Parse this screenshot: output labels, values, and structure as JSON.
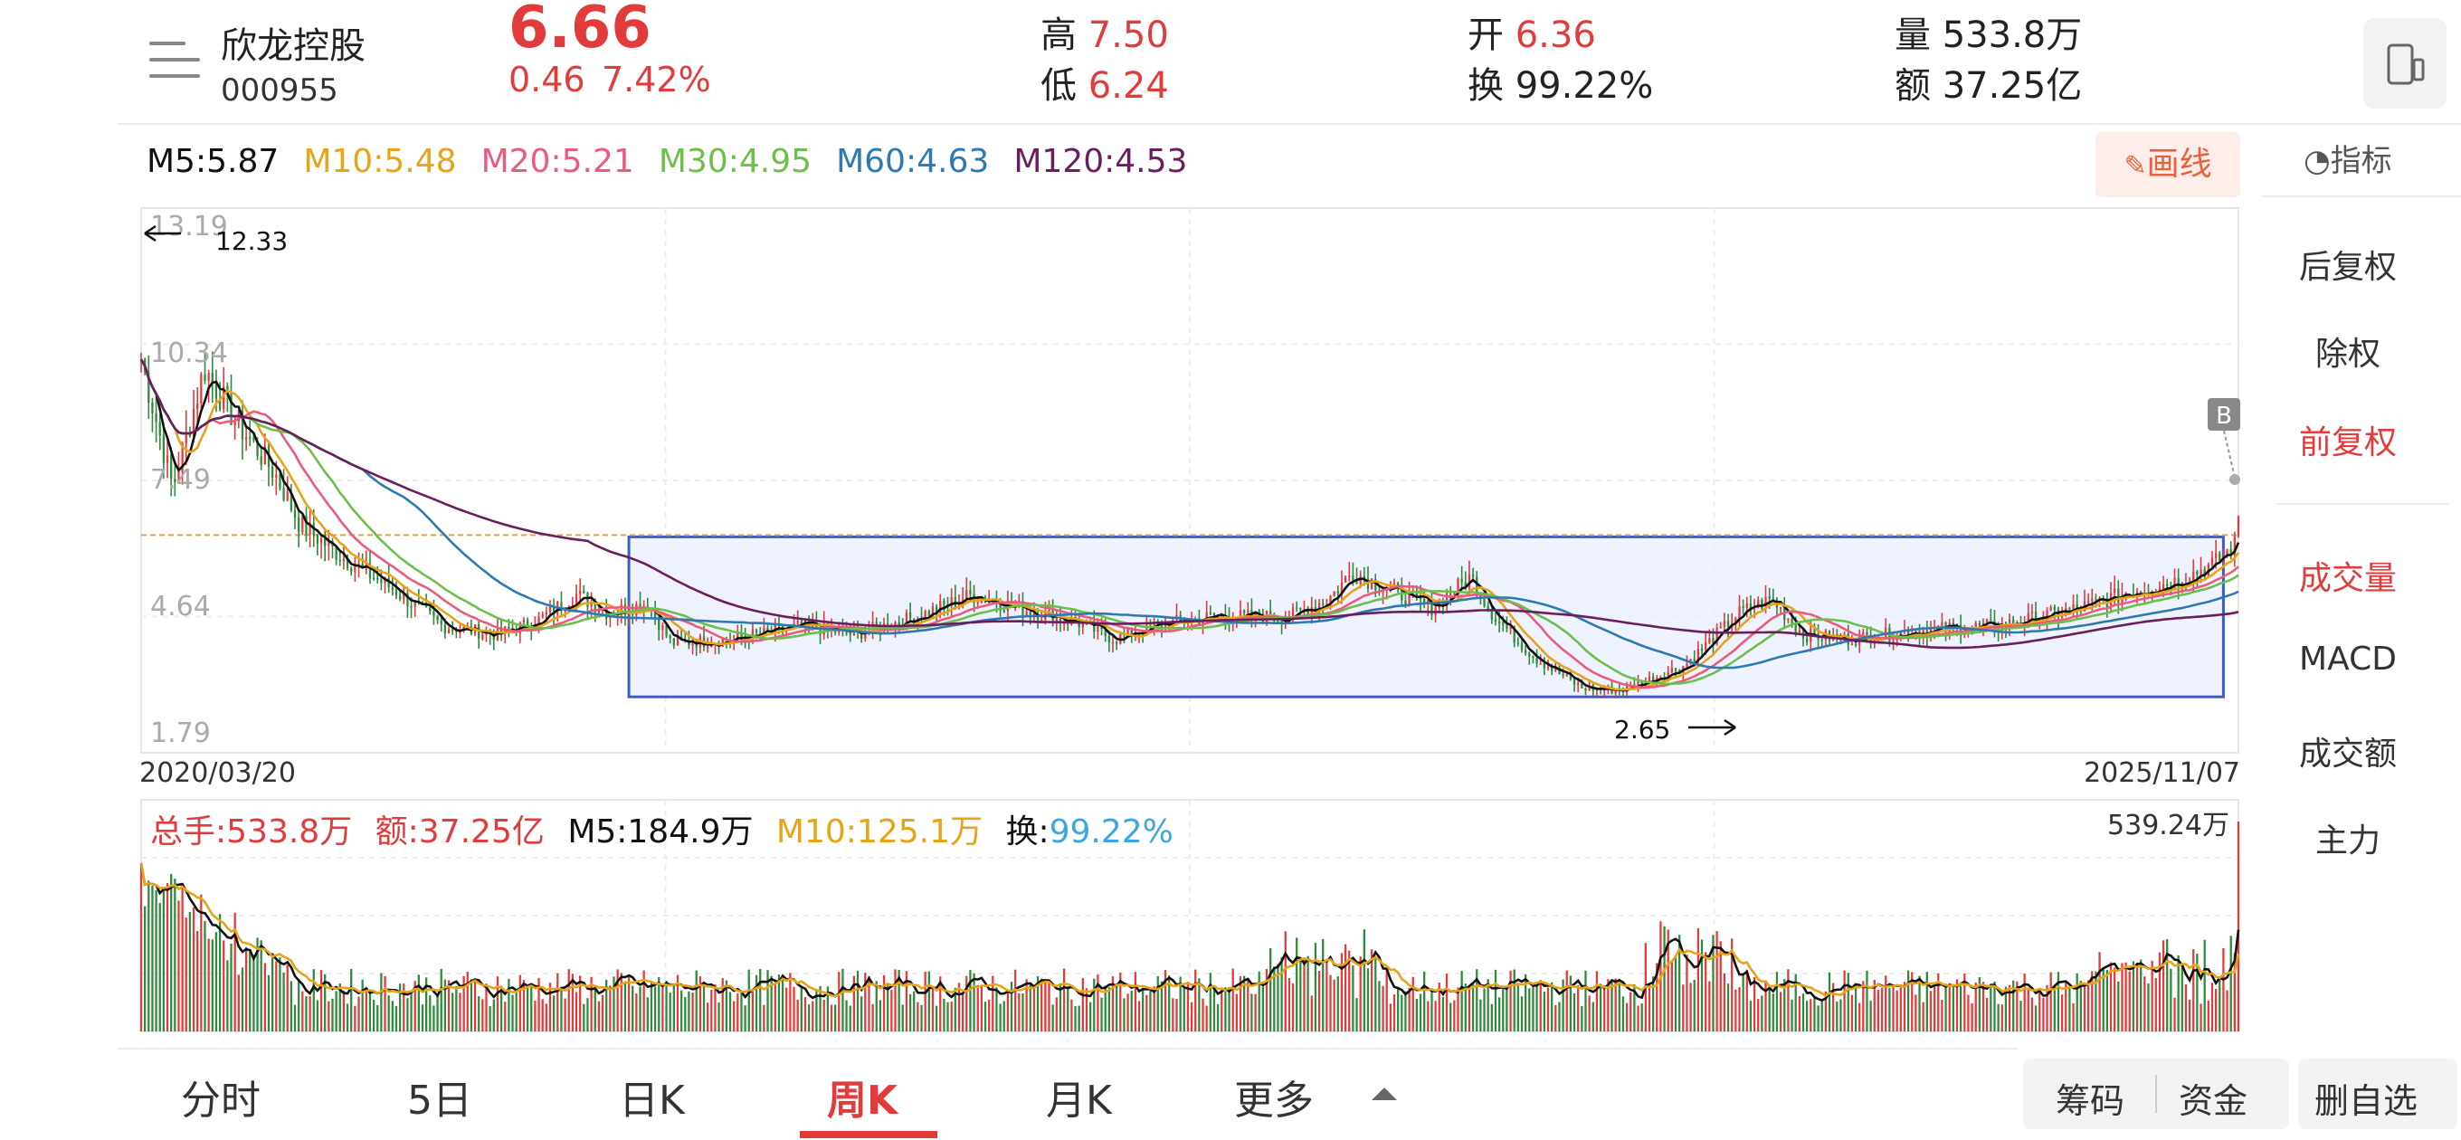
{
  "stock": {
    "name": "欣龙控股",
    "code": "000955",
    "price": "6.66",
    "change": "0.46",
    "change_pct": "7.42%"
  },
  "quote": {
    "high_label": "高",
    "high": "7.50",
    "low_label": "低",
    "low": "6.24",
    "open_label": "开",
    "open": "6.36",
    "turnover_label": "换",
    "turnover": "99.22%",
    "volume_label": "量",
    "volume": "533.8万",
    "amount_label": "额",
    "amount": "37.25亿"
  },
  "ma_legend": [
    {
      "label": "M5:5.87",
      "color": "#111111"
    },
    {
      "label": "M10:5.48",
      "color": "#e8a317"
    },
    {
      "label": "M20:5.21",
      "color": "#ea5b7d"
    },
    {
      "label": "M30:4.95",
      "color": "#6cc04a"
    },
    {
      "label": "M60:4.63",
      "color": "#2d7ab3"
    },
    {
      "label": "M120:4.53",
      "color": "#6b1e5e"
    }
  ],
  "draw_button": "画线",
  "indicator_label": "指标",
  "right_menu": [
    {
      "label": "后复权",
      "active": false
    },
    {
      "label": "除权",
      "active": false
    },
    {
      "label": "前复权",
      "active": true
    },
    {
      "label": "成交量",
      "active": true
    },
    {
      "label": "MACD",
      "active": false
    },
    {
      "label": "成交额",
      "active": false
    },
    {
      "label": "主力",
      "active": false
    }
  ],
  "price_axis": {
    "ticks": [
      "13.19",
      "10.34",
      "7.49",
      "4.64",
      "1.79"
    ],
    "high_marker": "12.33",
    "low_marker": "2.65",
    "ref_price": 6.2,
    "buy_marker": "B"
  },
  "date_axis": {
    "start": "2020/03/20",
    "end": "2025/11/07"
  },
  "volume_legend": {
    "total": "总手:533.8万",
    "amount": "额:37.25亿",
    "m5": "M5:184.9万",
    "m10": "M10:125.1万",
    "turnover_label": "换:",
    "turnover_value": "99.22%",
    "max": "539.24万"
  },
  "bottom_tabs": [
    {
      "label": "分时",
      "active": false
    },
    {
      "label": "5日",
      "active": false
    },
    {
      "label": "日K",
      "active": false
    },
    {
      "label": "周K",
      "active": true
    },
    {
      "label": "月K",
      "active": false
    },
    {
      "label": "更多",
      "active": false
    }
  ],
  "bottom_buttons": {
    "chips": "筹码",
    "funds": "资金",
    "remove": "删自选"
  },
  "colors": {
    "up": "#e23b3b",
    "down": "#2f8a3b",
    "accent": "#e23b3b",
    "box_fill": "#e9efff",
    "box_stroke": "#3a5bd0"
  },
  "chart_data": {
    "type": "candlestick",
    "y_range": [
      1.79,
      13.19
    ],
    "x_range": [
      "2020/03/20",
      "2025/11/07"
    ],
    "close_path": [
      [
        0,
        10.2
      ],
      [
        8,
        7.3
      ],
      [
        16,
        10.0
      ],
      [
        24,
        8.8
      ],
      [
        34,
        7.6
      ],
      [
        40,
        6.5
      ],
      [
        50,
        5.8
      ],
      [
        64,
        5.0
      ],
      [
        76,
        4.2
      ],
      [
        90,
        4.0
      ],
      [
        100,
        4.3
      ],
      [
        110,
        4.9
      ],
      [
        118,
        4.5
      ],
      [
        128,
        4.7
      ],
      [
        134,
        3.8
      ],
      [
        150,
        3.9
      ],
      [
        168,
        4.2
      ],
      [
        180,
        4.0
      ],
      [
        196,
        4.4
      ],
      [
        210,
        4.9
      ],
      [
        226,
        4.5
      ],
      [
        236,
        4.3
      ],
      [
        246,
        3.9
      ],
      [
        256,
        4.2
      ],
      [
        270,
        4.4
      ],
      [
        290,
        4.4
      ],
      [
        300,
        4.8
      ],
      [
        306,
        5.4
      ],
      [
        316,
        5.0
      ],
      [
        326,
        4.6
      ],
      [
        336,
        5.3
      ],
      [
        342,
        4.4
      ],
      [
        352,
        3.5
      ],
      [
        364,
        2.8
      ],
      [
        374,
        2.75
      ],
      [
        390,
        3.3
      ],
      [
        404,
        4.5
      ],
      [
        412,
        4.8
      ],
      [
        420,
        4.0
      ],
      [
        432,
        3.9
      ],
      [
        450,
        4.1
      ],
      [
        470,
        4.2
      ],
      [
        490,
        4.6
      ],
      [
        504,
        5.0
      ],
      [
        514,
        5.2
      ],
      [
        524,
        5.6
      ],
      [
        530,
        6.1
      ]
    ],
    "ma_end_values": {
      "M5": 5.87,
      "M10": 5.48,
      "M20": 5.21,
      "M30": 4.95,
      "M60": 4.63,
      "M120": 4.53
    },
    "volume_max": "539.24万"
  }
}
